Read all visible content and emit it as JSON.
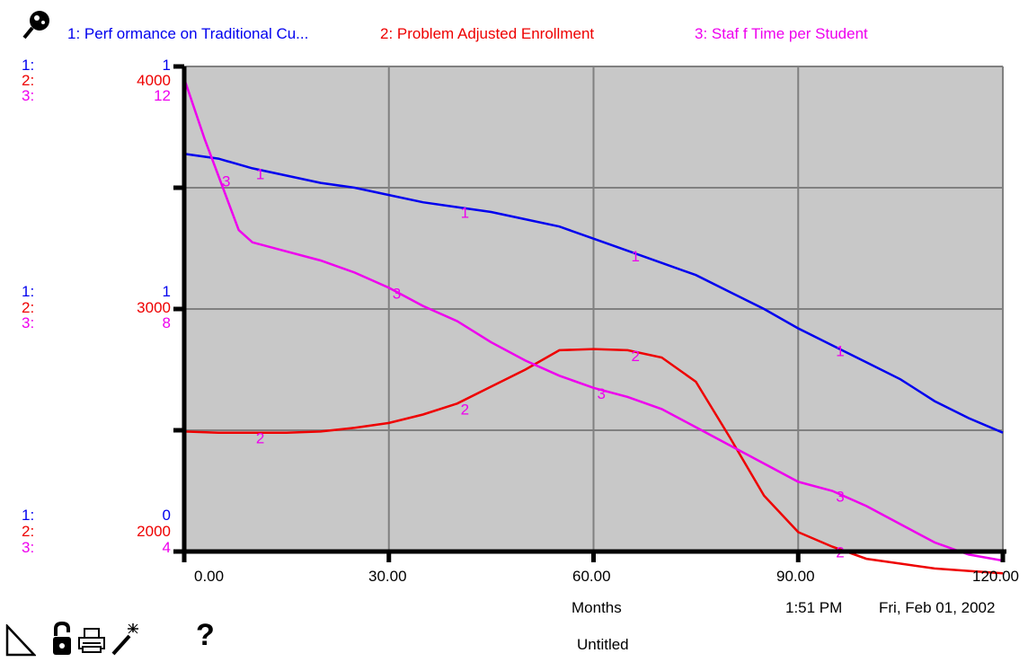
{
  "legend": {
    "s1": "1: Perf ormance on Traditional Cu...",
    "s2": "2: Problem Adjusted Enrollment",
    "s3": "3: Staf f Time per Student"
  },
  "colors": {
    "s1": "#0000ee",
    "s2": "#ee0000",
    "s3": "#ee00ee",
    "plot_bg": "#c8c8c8",
    "grid": "#808080",
    "axis": "#000000"
  },
  "axis_labels": {
    "top": {
      "p1": "1:",
      "p2": "2:",
      "p3": "3:",
      "v1": "1",
      "v2": "4000",
      "v3": "12"
    },
    "middle": {
      "p1": "1:",
      "p2": "2:",
      "p3": "3:",
      "v1": "1",
      "v2": "3000",
      "v3": "8"
    },
    "bottom": {
      "p1": "1:",
      "p2": "2:",
      "p3": "3:",
      "v1": "0",
      "v2": "2000",
      "v3": "4"
    }
  },
  "footer": {
    "xlabel": "Months",
    "time": "1:51 PM",
    "date": "Fri, Feb 01, 2002",
    "doc_title": "Untitled"
  },
  "toolbar": {
    "icons": [
      "page-corner-icon",
      "lock-icon",
      "printer-icon",
      "magic-wand-icon",
      "help-icon"
    ],
    "help_label": "?"
  },
  "chart_data": {
    "type": "line",
    "xlabel": "Months",
    "xlim": [
      0,
      120
    ],
    "xticks": [
      "0.00",
      "30.00",
      "60.00",
      "90.00",
      "120.00"
    ],
    "grid": true,
    "legend_placement": "top",
    "series": [
      {
        "name": "1: Perf ormance on Traditional Cu...",
        "color": "#0000ee",
        "ylim": [
          0,
          1
        ],
        "x": [
          0,
          5,
          10,
          15,
          20,
          25,
          30,
          35,
          40,
          45,
          50,
          55,
          60,
          65,
          70,
          75,
          80,
          85,
          90,
          95,
          100,
          105,
          110,
          115,
          120
        ],
        "y": [
          0.82,
          0.81,
          0.79,
          0.775,
          0.76,
          0.75,
          0.735,
          0.72,
          0.71,
          0.7,
          0.685,
          0.67,
          0.645,
          0.62,
          0.595,
          0.57,
          0.535,
          0.5,
          0.46,
          0.425,
          0.39,
          0.355,
          0.31,
          0.275,
          0.245
        ]
      },
      {
        "name": "2: Problem Adjusted Enrollment",
        "color": "#ee0000",
        "ylim": [
          2000,
          4000
        ],
        "x": [
          0,
          5,
          10,
          15,
          20,
          25,
          30,
          35,
          40,
          45,
          50,
          55,
          60,
          65,
          70,
          75,
          80,
          85,
          90,
          95,
          100,
          105,
          110,
          115,
          120
        ],
        "y": [
          2495,
          2490,
          2490,
          2490,
          2495,
          2510,
          2530,
          2565,
          2610,
          2680,
          2750,
          2830,
          2835,
          2830,
          2800,
          2700,
          2470,
          2230,
          2080,
          2020,
          1970,
          1950,
          1930,
          1920,
          1910
        ]
      },
      {
        "name": "3: Staf f Time per Student",
        "color": "#ee00ee",
        "ylim": [
          4,
          12
        ],
        "x": [
          0,
          3,
          5,
          8,
          10,
          15,
          20,
          25,
          30,
          35,
          40,
          45,
          50,
          55,
          60,
          65,
          70,
          75,
          80,
          85,
          90,
          95,
          100,
          105,
          110,
          115,
          120
        ],
        "y": [
          11.8,
          10.8,
          10.2,
          9.3,
          9.1,
          8.95,
          8.8,
          8.6,
          8.35,
          8.05,
          7.8,
          7.45,
          7.15,
          6.9,
          6.7,
          6.55,
          6.35,
          6.05,
          5.75,
          5.45,
          5.15,
          5.0,
          4.75,
          4.45,
          4.15,
          3.95,
          3.85
        ]
      }
    ]
  }
}
